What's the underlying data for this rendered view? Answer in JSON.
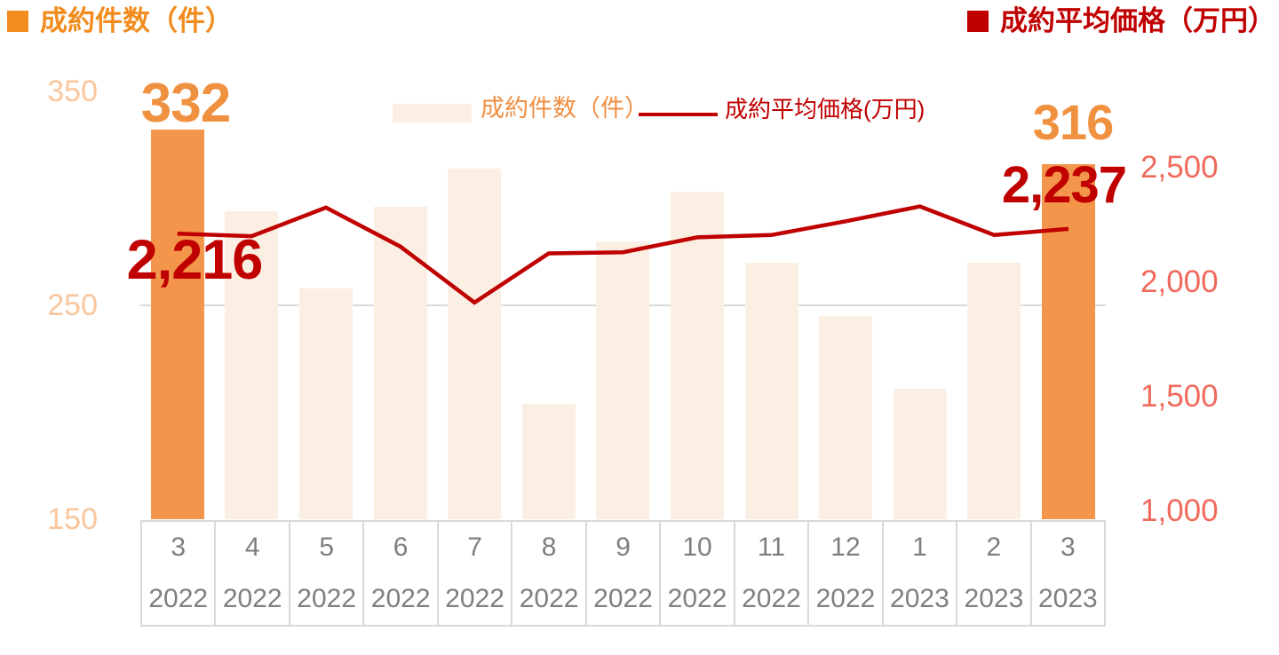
{
  "header": {
    "left_title": "成約件数（件）",
    "right_title": "成約平均価格（万円）"
  },
  "legend": {
    "bars_label": "成約件数（件）",
    "line_label": "成約平均価格(万円)"
  },
  "annotations": {
    "first_bar_value": "332",
    "first_line_value": "2,216",
    "last_bar_value": "316",
    "last_line_value": "2,237"
  },
  "colors": {
    "orange_title": "#F28C1E",
    "bar_highlight": "#F3954A",
    "bar_pale": "#FBEFE4",
    "big_number_orange": "#F09140",
    "dark_red": "#C00000",
    "left_tick": "#F9C69D",
    "right_tick": "#F06A5C",
    "table_text": "#7F7F7F",
    "border_gray": "#D9D9D9"
  },
  "chart_data": {
    "type": "combo-bar-line",
    "categories": [
      {
        "month": "3",
        "year": "2022"
      },
      {
        "month": "4",
        "year": "2022"
      },
      {
        "month": "5",
        "year": "2022"
      },
      {
        "month": "6",
        "year": "2022"
      },
      {
        "month": "7",
        "year": "2022"
      },
      {
        "month": "8",
        "year": "2022"
      },
      {
        "month": "9",
        "year": "2022"
      },
      {
        "month": "10",
        "year": "2022"
      },
      {
        "month": "11",
        "year": "2022"
      },
      {
        "month": "12",
        "year": "2022"
      },
      {
        "month": "1",
        "year": "2023"
      },
      {
        "month": "2",
        "year": "2023"
      },
      {
        "month": "3",
        "year": "2023"
      }
    ],
    "series": [
      {
        "name": "成約件数（件）",
        "type": "bar",
        "axis": "left",
        "values": [
          332,
          294,
          258,
          296,
          314,
          204,
          280,
          303,
          270,
          245,
          211,
          270,
          316
        ],
        "highlighted_indices": [
          0,
          12
        ]
      },
      {
        "name": "成約平均価格(万円)",
        "type": "line",
        "axis": "right",
        "values": [
          2216,
          2205,
          2330,
          2160,
          1915,
          2130,
          2135,
          2200,
          2210,
          2270,
          2335,
          2210,
          2237
        ]
      }
    ],
    "left_axis": {
      "title": "成約件数（件）",
      "ticks": [
        350,
        250,
        150
      ],
      "min": 150,
      "max": 350
    },
    "right_axis": {
      "title": "成約平均価格（万円）",
      "ticks": [
        2500,
        2000,
        1500,
        1000
      ],
      "min": 1000,
      "max": 2500
    },
    "gridline_left_value": 250,
    "legend_position": "top-center",
    "grid": "single horizontal line at 250"
  }
}
